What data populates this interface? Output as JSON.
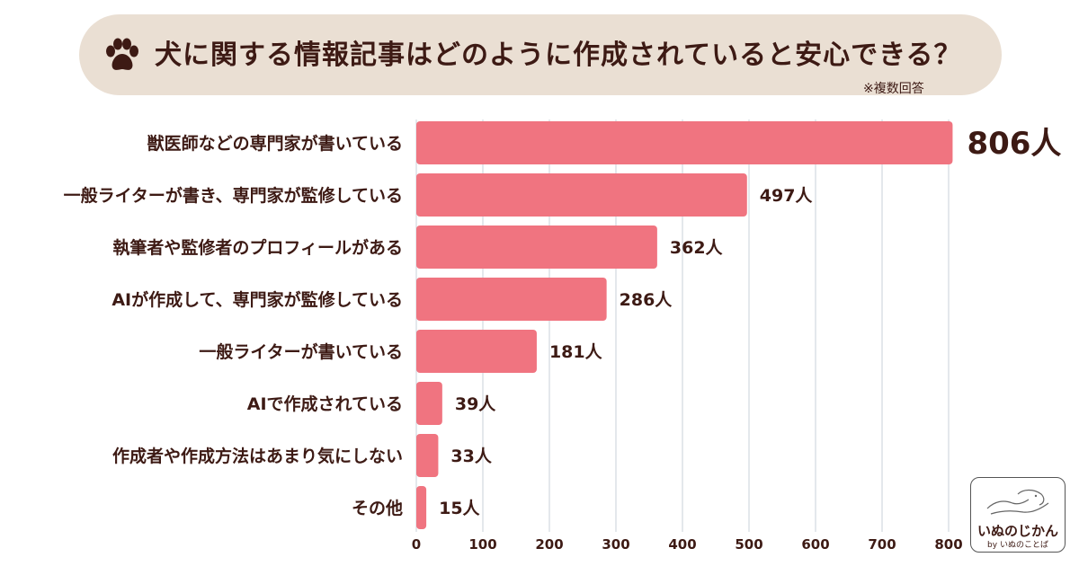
{
  "header": {
    "title": "犬に関する情報記事はどのように作成されていると安心できる？",
    "note": "※複数回答",
    "icon": "paw-icon"
  },
  "chart_data": {
    "type": "bar",
    "orientation": "horizontal",
    "categories": [
      "獣医師などの専門家が書いている",
      "一般ライターが書き、専門家が監修している",
      "執筆者や監修者のプロフィールがある",
      "AIが作成して、専門家が監修している",
      "一般ライターが書いている",
      "AIで作成されている",
      "作成者や作成方法はあまり気にしない",
      "その他"
    ],
    "values": [
      806,
      497,
      362,
      286,
      181,
      39,
      33,
      15
    ],
    "value_labels": [
      "806人",
      "497人",
      "362人",
      "286人",
      "181人",
      "39人",
      "33人",
      "15人"
    ],
    "xlim": [
      0,
      800
    ],
    "xticks": [
      0,
      100,
      200,
      300,
      400,
      500,
      600,
      700,
      800
    ],
    "grid": true,
    "bar_color": "#f07480"
  },
  "logo": {
    "title": "いぬのじかん",
    "subtitle": "by いぬのことば"
  }
}
